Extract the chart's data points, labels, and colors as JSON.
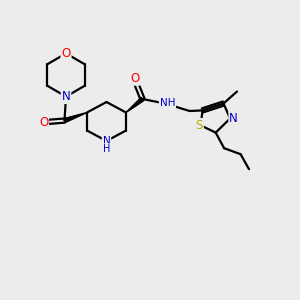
{
  "bg_color": "#ececec",
  "bond_color": "#000000",
  "bond_width": 1.6,
  "atom_colors": {
    "O": "#ff0000",
    "N": "#0000cc",
    "S": "#bbaa00",
    "C": "#000000",
    "H": "#000000"
  },
  "font_size_atom": 8.5,
  "font_size_small": 7.5,
  "font_size_h": 7.0
}
